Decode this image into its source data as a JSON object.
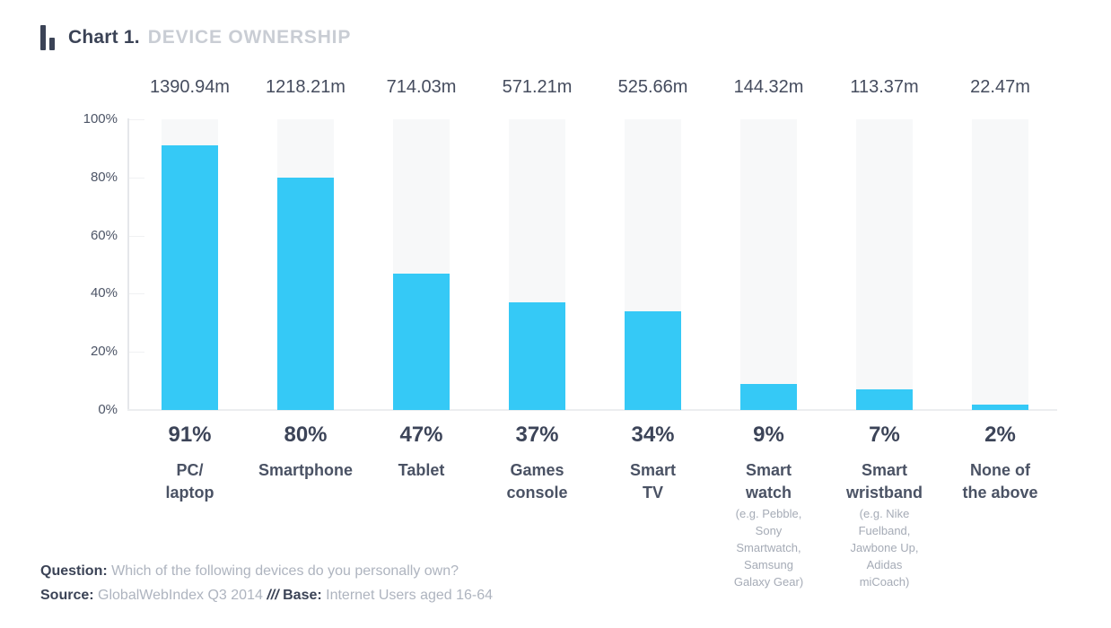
{
  "header": {
    "icon": "bar-chart-icon",
    "title_prefix": "Chart 1.",
    "title_main": "DEVICE OWNERSHIP"
  },
  "colors": {
    "bar": "#35C9F6",
    "track": "#F7F8F9",
    "dark_text": "#3B4356",
    "muted_text": "#AEB4BF",
    "title_light": "#C9CDD4",
    "axis_line": "#E5E7EA"
  },
  "chart_data": {
    "type": "bar",
    "title": "Chart 1. DEVICE OWNERSHIP",
    "xlabel": "",
    "ylabel": "",
    "ylim": [
      0,
      100
    ],
    "legend": "none",
    "grid": "left-ticks-only",
    "categories": [
      "PC/ laptop",
      "Smartphone",
      "Tablet",
      "Games console",
      "Smart TV",
      "Smart watch",
      "Smart wristband",
      "None of the above"
    ],
    "values": [
      91,
      80,
      47,
      37,
      34,
      9,
      7,
      2
    ],
    "totals_millions": [
      "1390.94m",
      "1218.21m",
      "714.03m",
      "571.21m",
      "525.66m",
      "144.32m",
      "113.37m",
      "22.47m"
    ],
    "yticks": [
      {
        "pct": 100,
        "label": "100%"
      },
      {
        "pct": 80,
        "label": "80%"
      },
      {
        "pct": 60,
        "label": "60%"
      },
      {
        "pct": 40,
        "label": "40%"
      },
      {
        "pct": 20,
        "label": "20%"
      },
      {
        "pct": 0,
        "label": "0%"
      }
    ],
    "columns": [
      {
        "id": "pc-laptop",
        "total": "1390.94m",
        "percent": 91,
        "percent_label": "91%",
        "label_lines": [
          "PC/",
          "laptop"
        ],
        "sub_lines": []
      },
      {
        "id": "smartphone",
        "total": "1218.21m",
        "percent": 80,
        "percent_label": "80%",
        "label_lines": [
          "Smartphone"
        ],
        "sub_lines": []
      },
      {
        "id": "tablet",
        "total": "714.03m",
        "percent": 47,
        "percent_label": "47%",
        "label_lines": [
          "Tablet"
        ],
        "sub_lines": []
      },
      {
        "id": "games-console",
        "total": "571.21m",
        "percent": 37,
        "percent_label": "37%",
        "label_lines": [
          "Games",
          "console"
        ],
        "sub_lines": []
      },
      {
        "id": "smart-tv",
        "total": "525.66m",
        "percent": 34,
        "percent_label": "34%",
        "label_lines": [
          "Smart",
          "TV"
        ],
        "sub_lines": []
      },
      {
        "id": "smart-watch",
        "total": "144.32m",
        "percent": 9,
        "percent_label": "9%",
        "label_lines": [
          "Smart",
          "watch"
        ],
        "sub_lines": [
          "(e.g. Pebble,",
          "Sony",
          "Smartwatch,",
          "Samsung",
          "Galaxy Gear)"
        ]
      },
      {
        "id": "smart-wristband",
        "total": "113.37m",
        "percent": 7,
        "percent_label": "7%",
        "label_lines": [
          "Smart",
          "wristband"
        ],
        "sub_lines": [
          "(e.g. Nike",
          "Fuelband,",
          "Jawbone Up,",
          "Adidas",
          "miCoach)"
        ]
      },
      {
        "id": "none-of-above",
        "total": "22.47m",
        "percent": 2,
        "percent_label": "2%",
        "label_lines": [
          "None of",
          "the above"
        ],
        "sub_lines": []
      }
    ]
  },
  "footer": {
    "question_label": "Question:",
    "question_text": "Which of the following devices do you personally own?",
    "source_label": "Source:",
    "source_text": "GlobalWebIndex Q3 2014",
    "separator": "///",
    "base_label": "Base:",
    "base_text": "Internet Users  aged 16-64"
  }
}
